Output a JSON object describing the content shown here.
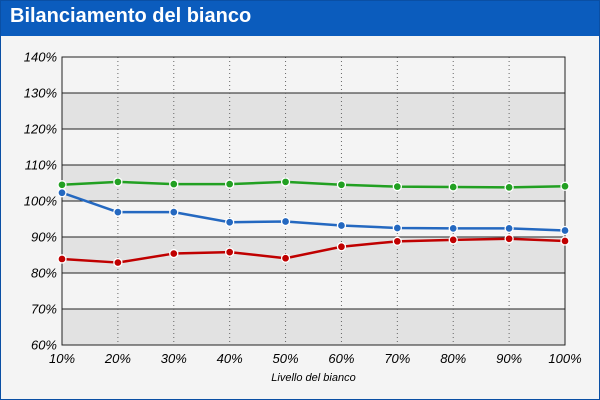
{
  "window": {
    "title": "Bilanciamento del bianco"
  },
  "colors": {
    "title_bar": "#0b5cbd",
    "band_shaded": "#e2e2e2",
    "band_light": "#f4f4f4",
    "red": "#c00000",
    "green": "#22a022",
    "blue": "#2468c0"
  },
  "chart_data": {
    "type": "line",
    "title": "",
    "xlabel": "Livello del bianco",
    "ylabel": "",
    "categories": [
      "10%",
      "20%",
      "30%",
      "40%",
      "50%",
      "60%",
      "70%",
      "80%",
      "90%",
      "100%"
    ],
    "x": [
      10,
      20,
      30,
      40,
      50,
      60,
      70,
      80,
      90,
      100
    ],
    "y_ticks": [
      "60%",
      "70%",
      "80%",
      "90%",
      "100%",
      "110%",
      "120%",
      "130%",
      "140%"
    ],
    "ylim": [
      60,
      140
    ],
    "y_tick_step": 10,
    "grid": true,
    "legend": "none",
    "series": [
      {
        "color": "#22a022",
        "values": [
          104.5,
          105.3,
          104.7,
          104.7,
          105.3,
          104.5,
          104.0,
          103.9,
          103.8,
          104.1
        ]
      },
      {
        "color": "#2468c0",
        "values": [
          102.3,
          96.9,
          96.9,
          94.1,
          94.3,
          93.2,
          92.5,
          92.4,
          92.4,
          91.8
        ]
      },
      {
        "color": "#c00000",
        "values": [
          83.9,
          82.9,
          85.4,
          85.8,
          84.1,
          87.3,
          88.8,
          89.2,
          89.5,
          88.9
        ]
      }
    ]
  }
}
